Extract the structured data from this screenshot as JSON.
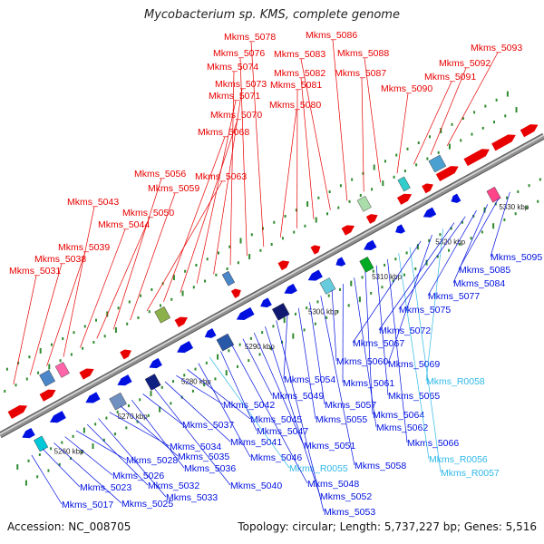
{
  "title": "Mycobacterium sp. KMS, complete genome",
  "footer": {
    "accession": "Accession: NC_008705",
    "info": "Topology: circular; Length: 5,737,227 bp; Genes: 5,516"
  },
  "colors": {
    "forward": "#e80000",
    "reverse": "#0010e0",
    "rna": "#30b8e8",
    "backbone": "#909090",
    "tick": "#2e8b2e"
  },
  "kbp_labels": [
    "5260 kbp",
    "5270 kbp",
    "5280 kbp",
    "5290 kbp",
    "5300 kbp",
    "5310 kbp",
    "5320 kbp",
    "5330 kbp"
  ],
  "top_labels": [
    "Mkms_5031",
    "Mkms_5038",
    "Mkms_5039",
    "Mkms_5043",
    "Mkms_5044",
    "Mkms_5050",
    "Mkms_5056",
    "Mkms_5059",
    "Mkms_5063",
    "Mkms_5068",
    "Mkms_5070",
    "Mkms_5071",
    "Mkms_5073",
    "Mkms_5074",
    "Mkms_5076",
    "Mkms_5078",
    "Mkms_5080",
    "Mkms_5081",
    "Mkms_5082",
    "Mkms_5083",
    "Mkms_5086",
    "Mkms_5087",
    "Mkms_5088",
    "Mkms_5090",
    "Mkms_5091",
    "Mkms_5092",
    "Mkms_5093"
  ],
  "bottom_labels": [
    "Mkms_5017",
    "Mkms_5023",
    "Mkms_5025",
    "Mkms_5026",
    "Mkms_5028",
    "Mkms_5032",
    "Mkms_5033",
    "Mkms_5034",
    "Mkms_5035",
    "Mkms_5036",
    "Mkms_5037",
    "Mkms_5040",
    "Mkms_5041",
    "Mkms_5042",
    "Mkms_5045",
    "Mkms_5046",
    "Mkms_R0055",
    "Mkms_5047",
    "Mkms_5048",
    "Mkms_5049",
    "Mkms_5051",
    "Mkms_5052",
    "Mkms_5053",
    "Mkms_5054",
    "Mkms_5055",
    "Mkms_5057",
    "Mkms_5058",
    "Mkms_5060",
    "Mkms_5061",
    "Mkms_5062",
    "Mkms_5064",
    "Mkms_5065",
    "Mkms_5066",
    "Mkms_R0056",
    "Mkms_R0057",
    "Mkms_5067",
    "Mkms_5069",
    "Mkms_R0058",
    "Mkms_5072",
    "Mkms_5075",
    "Mkms_5077",
    "Mkms_5084",
    "Mkms_5085",
    "Mkms_5095"
  ]
}
